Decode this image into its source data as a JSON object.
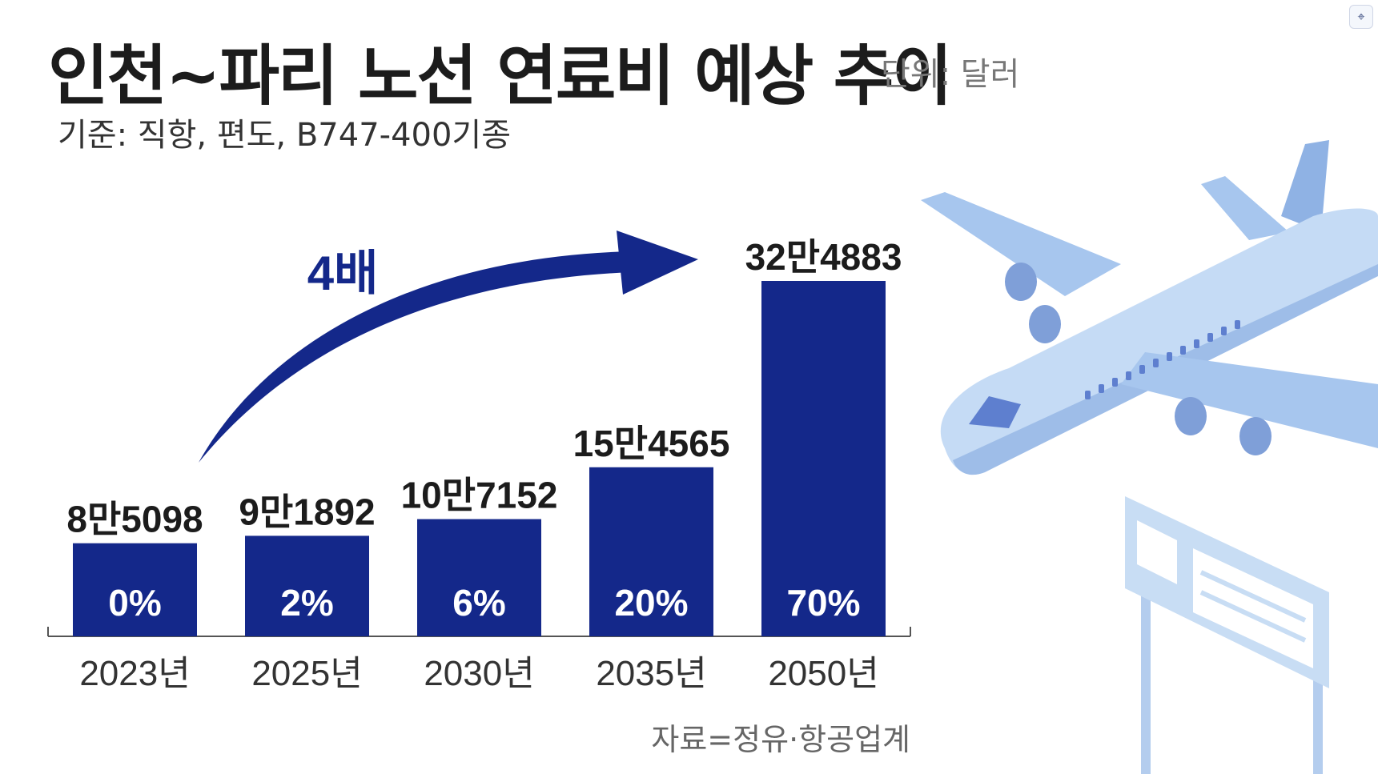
{
  "header": {
    "title": "인천~파리 노선 연료비 예상 추이",
    "unit": "단위: 달러",
    "subtitle": "기준: 직항, 편도, B747-400기종"
  },
  "footer": {
    "source": "자료=정유·항공업계"
  },
  "annotation": {
    "arrow_label": "4배"
  },
  "colors": {
    "bar": "#14288a",
    "text_dark": "#1c1c1c",
    "plane": "#b9d4f2",
    "sign": "#c8ddf4"
  },
  "icons": {
    "corner": "scan-icon",
    "plane": "airplane-icon",
    "sign": "sign-board-icon"
  },
  "chart_data": {
    "type": "bar",
    "title": "인천~파리 노선 연료비 예상 추이",
    "xlabel": "",
    "ylabel": "",
    "categories": [
      "2023년",
      "2025년",
      "2030년",
      "2035년",
      "2050년"
    ],
    "values": [
      85098,
      91892,
      107152,
      154565,
      324883
    ],
    "value_labels": [
      "8만5098",
      "9만1892",
      "10만7152",
      "15만4565",
      "32만4883"
    ],
    "percent_labels": [
      "0%",
      "2%",
      "6%",
      "20%",
      "70%"
    ],
    "ylim": [
      0,
      324883
    ],
    "grid": false,
    "legend": "none"
  }
}
